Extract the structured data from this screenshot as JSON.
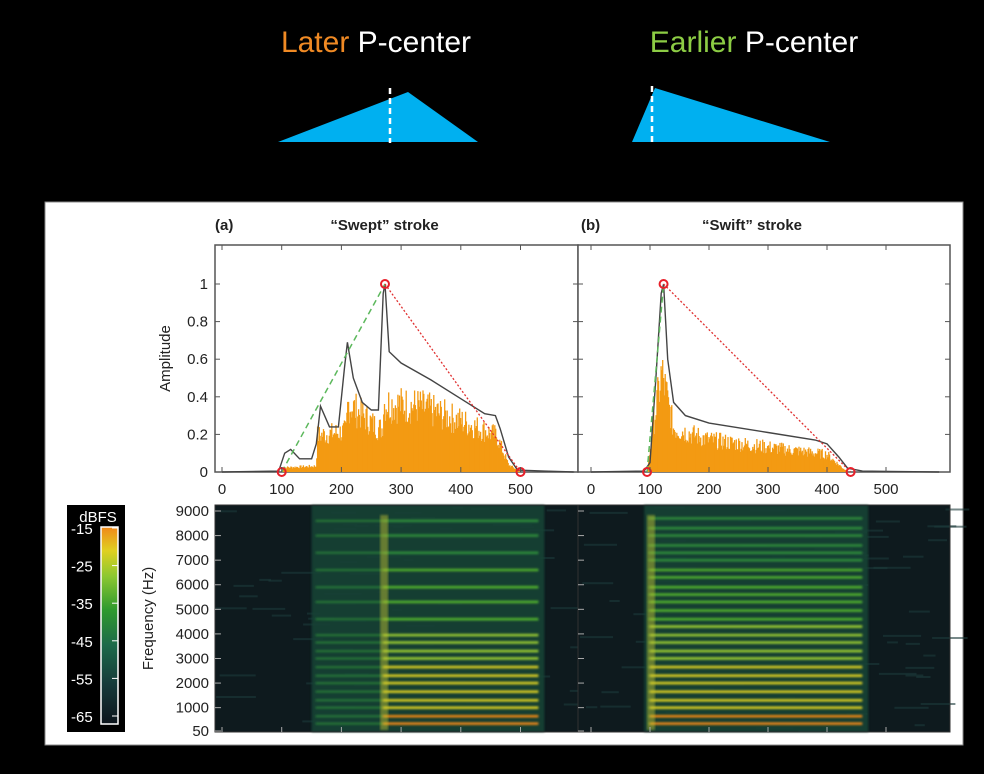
{
  "header": {
    "later": {
      "word": "Later",
      "rest": " P-center",
      "color": "#f08a24"
    },
    "earlier": {
      "word": "Earlier",
      "rest": " P-center",
      "color": "#8ccc44"
    },
    "shape_color": "#00b0f0"
  },
  "chart_data": [
    {
      "type": "line",
      "panel": "(a)",
      "title": "“Swept” stroke",
      "ylabel": "Amplitude",
      "xlabel": "",
      "xlim": [
        -12,
        593
      ],
      "ylim": [
        0,
        1.2
      ],
      "xticks": [
        "0",
        "100",
        "200",
        "300",
        "400",
        "500"
      ],
      "xtick_values": [
        0,
        100,
        200,
        300,
        400,
        500
      ],
      "yticks": [
        "0",
        "0.2",
        "0.4",
        "0.6",
        "0.8",
        "1"
      ],
      "ytick_values": [
        0,
        0.2,
        0.4,
        0.6,
        0.8,
        1
      ],
      "envelope": [
        [
          0,
          0
        ],
        [
          95,
          0.005
        ],
        [
          105,
          0.1
        ],
        [
          115,
          0.12
        ],
        [
          130,
          0.07
        ],
        [
          150,
          0.07
        ],
        [
          158,
          0.15
        ],
        [
          165,
          0.35
        ],
        [
          180,
          0.24
        ],
        [
          195,
          0.24
        ],
        [
          205,
          0.55
        ],
        [
          210,
          0.69
        ],
        [
          220,
          0.5
        ],
        [
          235,
          0.37
        ],
        [
          250,
          0.33
        ],
        [
          262,
          0.33
        ],
        [
          270,
          0.95
        ],
        [
          273,
          1
        ],
        [
          280,
          0.64
        ],
        [
          300,
          0.58
        ],
        [
          350,
          0.49
        ],
        [
          400,
          0.39
        ],
        [
          440,
          0.31
        ],
        [
          458,
          0.3
        ],
        [
          466,
          0.23
        ],
        [
          480,
          0.08
        ],
        [
          495,
          0.01
        ],
        [
          540,
          0.005
        ],
        [
          590,
          0
        ]
      ],
      "waveform_peak": [
        [
          100,
          0.03
        ],
        [
          158,
          0.04
        ],
        [
          160,
          0.25
        ],
        [
          208,
          0.28
        ],
        [
          211,
          0.47
        ],
        [
          262,
          0.3
        ],
        [
          269,
          0.3
        ],
        [
          271,
          0.47
        ],
        [
          330,
          0.45
        ],
        [
          400,
          0.35
        ],
        [
          460,
          0.25
        ],
        [
          480,
          0.05
        ],
        [
          500,
          0
        ]
      ],
      "markers": [
        [
          100,
          0
        ],
        [
          273,
          1
        ],
        [
          500,
          0
        ]
      ],
      "rise_line": [
        [
          100,
          0
        ],
        [
          273,
          1
        ]
      ],
      "fall_line": [
        [
          273,
          1
        ],
        [
          500,
          0
        ]
      ],
      "spectrogram": {
        "ylabel": "Frequency (Hz)",
        "yticks": [
          "50",
          "1000",
          "2000",
          "3000",
          "4000",
          "5000",
          "6000",
          "7000",
          "8000",
          "9000"
        ],
        "ytick_values": [
          50,
          1000,
          2000,
          3000,
          4000,
          5000,
          6000,
          7000,
          8000,
          9000
        ],
        "active": [
          150,
          540
        ],
        "bright_from": 270,
        "harmonics": [
          350,
          650,
          1000,
          1300,
          1650,
          2000,
          2300,
          2650,
          3000,
          3300,
          3650,
          3950,
          4600,
          5300,
          5900,
          6600,
          7300,
          8000,
          8600
        ]
      }
    },
    {
      "type": "line",
      "panel": "(b)",
      "title": "“Swift” stroke",
      "ylabel": "",
      "xlabel": "",
      "xlim": [
        -12,
        593
      ],
      "ylim": [
        0,
        1.2
      ],
      "xticks": [
        "0",
        "100",
        "200",
        "300",
        "400",
        "500"
      ],
      "xtick_values": [
        0,
        100,
        200,
        300,
        400,
        500
      ],
      "envelope": [
        [
          0,
          0
        ],
        [
          90,
          0.005
        ],
        [
          100,
          0.05
        ],
        [
          110,
          0.5
        ],
        [
          119,
          0.95
        ],
        [
          123,
          1
        ],
        [
          130,
          0.6
        ],
        [
          140,
          0.37
        ],
        [
          160,
          0.3
        ],
        [
          200,
          0.26
        ],
        [
          300,
          0.21
        ],
        [
          380,
          0.17
        ],
        [
          400,
          0.15
        ],
        [
          420,
          0.08
        ],
        [
          435,
          0.02
        ],
        [
          460,
          0.005
        ],
        [
          590,
          0
        ]
      ],
      "waveform_peak": [
        [
          95,
          0
        ],
        [
          105,
          0.3
        ],
        [
          120,
          0.68
        ],
        [
          140,
          0.3
        ],
        [
          200,
          0.22
        ],
        [
          300,
          0.17
        ],
        [
          400,
          0.12
        ],
        [
          420,
          0.05
        ],
        [
          435,
          0
        ]
      ],
      "markers": [
        [
          95,
          0
        ],
        [
          123,
          1
        ],
        [
          440,
          0
        ]
      ],
      "rise_line": [
        [
          95,
          0
        ],
        [
          123,
          1
        ]
      ],
      "fall_line": [
        [
          123,
          1
        ],
        [
          440,
          0
        ]
      ],
      "spectrogram": {
        "active": [
          90,
          470
        ],
        "bright_from": 100,
        "harmonics": [
          350,
          650,
          1000,
          1300,
          1650,
          2000,
          2300,
          2650,
          3000,
          3300,
          3650,
          3950,
          4300,
          4600,
          4950,
          5300,
          5600,
          5900,
          6300,
          6600,
          7000,
          7300,
          7600,
          8000,
          8300,
          8700
        ]
      }
    }
  ],
  "colorbar": {
    "label": "dBFS",
    "ticks": [
      "-15",
      "-25",
      "-35",
      "-45",
      "-55",
      "-65"
    ],
    "tick_values": [
      -15,
      -25,
      -35,
      -45,
      -55,
      -65
    ],
    "range": [
      -67,
      -12
    ],
    "colors": [
      "#0d151c",
      "#163a3a",
      "#1d6a4a",
      "#2f9a2e",
      "#8cc830",
      "#e0d020",
      "#f08818"
    ]
  }
}
